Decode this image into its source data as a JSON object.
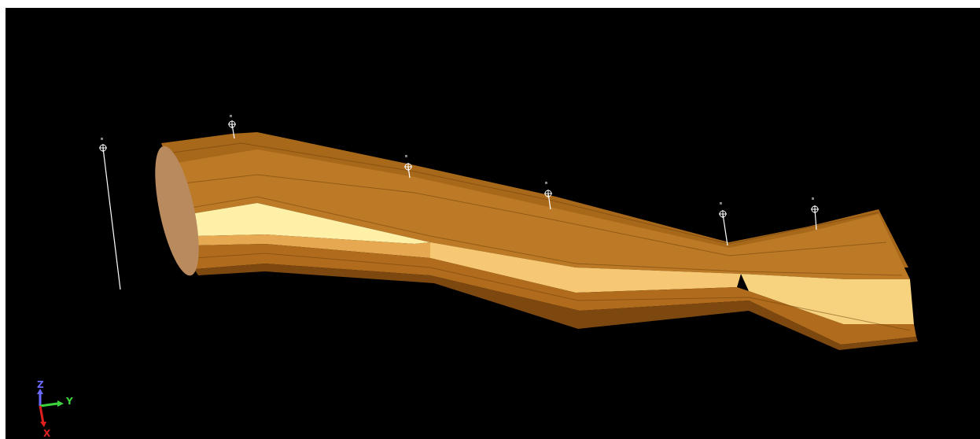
{
  "viewport": {
    "background": "#000000"
  },
  "colors": {
    "model_dark": "#7a4a0e",
    "model_mid": "#b8741f",
    "model_light": "#e6a64a",
    "model_highlight": "#fff2a8",
    "end_cap": "#b98a5e",
    "well_line": "#ffffff"
  },
  "wells": [
    {
      "label": "m"
    },
    {
      "label": "m"
    },
    {
      "label": "m"
    },
    {
      "label": "m"
    },
    {
      "label": "m"
    },
    {
      "label": "m"
    }
  ],
  "axes": {
    "z_label": "Z",
    "y_label": "Y",
    "x_label": "X",
    "z_color": "#6a6aff",
    "y_color": "#3cd43c",
    "x_color": "#e02020"
  }
}
